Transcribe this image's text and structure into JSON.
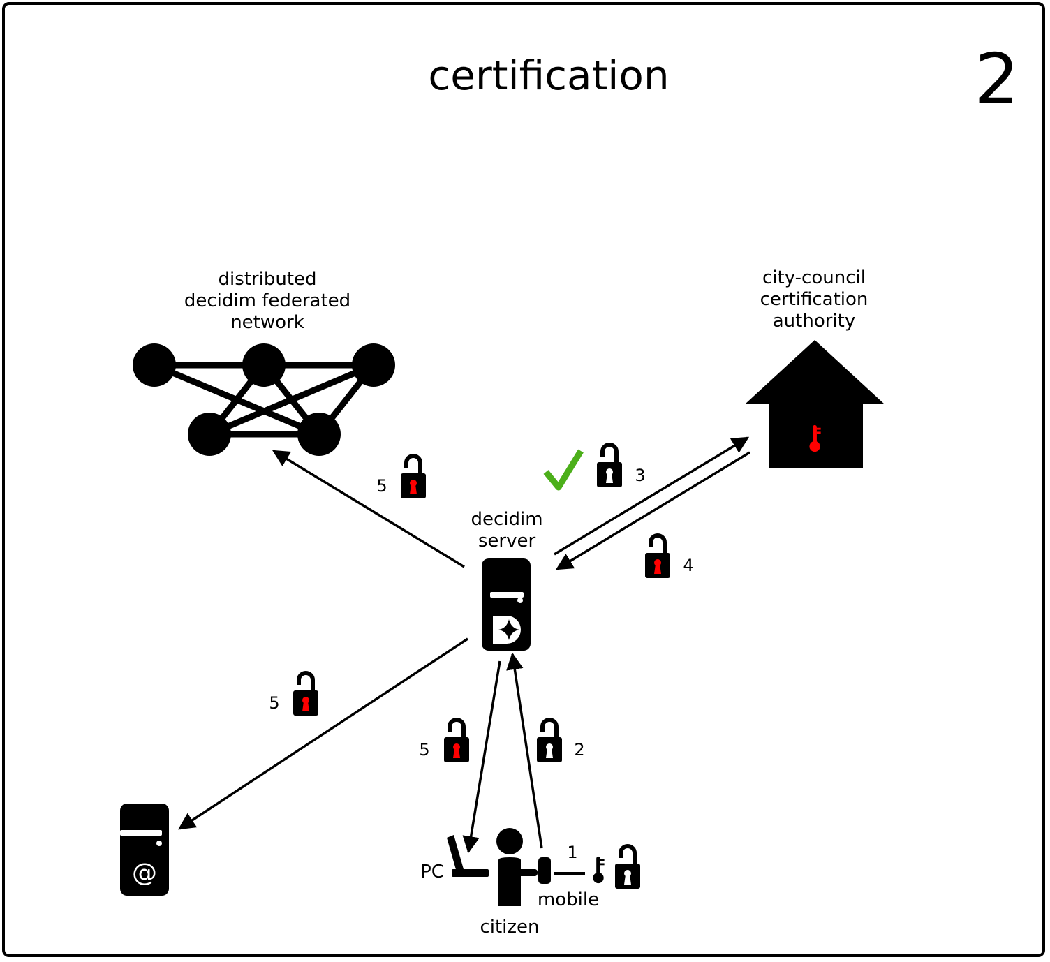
{
  "title": "certification",
  "panel_number": "2",
  "nodes": {
    "network_line1": "distributed",
    "network_line2": "decidim federated",
    "network_line3": "network",
    "authority_line1": "city-council",
    "authority_line2": "certification",
    "authority_line3": "authority",
    "server_line1": "decidim",
    "server_line2": "server",
    "pc": "PC",
    "citizen": "citizen",
    "mobile": "mobile"
  },
  "steps": {
    "to_network": "5",
    "to_authority": "3",
    "from_authority": "4",
    "to_mail": "5",
    "to_pc": "5",
    "from_mobile": "2",
    "mobile_key": "1"
  },
  "icons": {
    "network": "network-graph-icon",
    "authority": "house-icon",
    "server": "decidim-server-icon",
    "mail_server": "mail-server-icon",
    "citizen": "person-icon",
    "pc": "laptop-icon",
    "mobile": "mobile-phone-icon",
    "key": "key-icon",
    "lock": "padlock-icon",
    "check": "checkmark-icon"
  },
  "colors": {
    "ink": "#000000",
    "lock_hole_signed": "#ff0000",
    "lock_hole_plain": "#ffffff",
    "check": "#4caf1a",
    "key_in_house": "#ff0000"
  }
}
